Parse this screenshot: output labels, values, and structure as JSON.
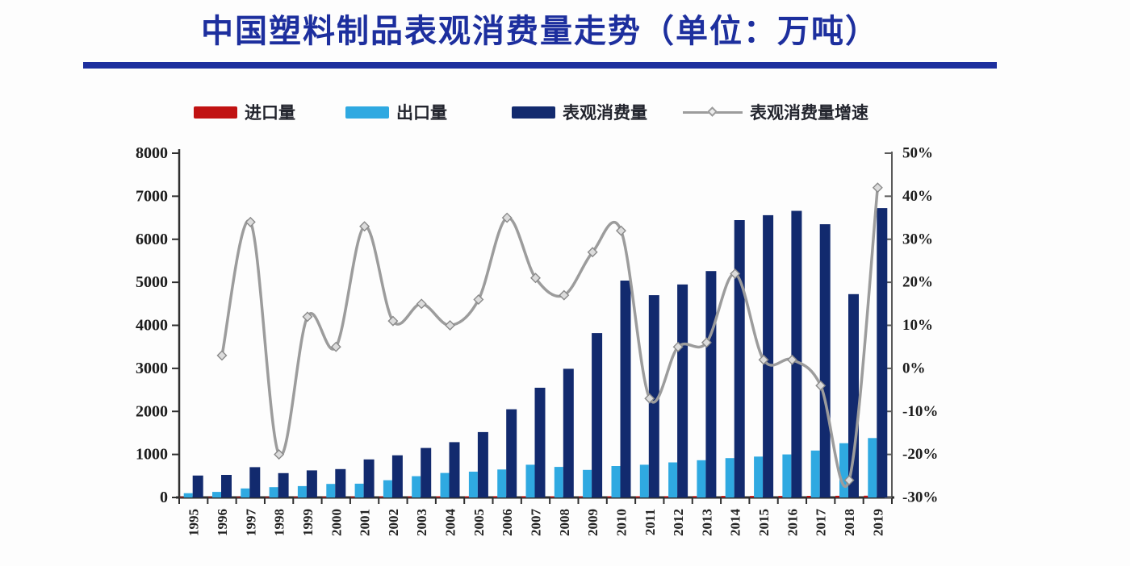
{
  "title": {
    "text": "中国塑料制品表观消费量走势（单位：万吨）",
    "color": "#1d2f9e"
  },
  "divider": {
    "color": "#1d2f9e"
  },
  "legend": {
    "items": [
      {
        "label": "进口量",
        "swatch": "bar",
        "color": "#c11212"
      },
      {
        "label": "出口量",
        "swatch": "bar",
        "color": "#2fa9e1"
      },
      {
        "label": "表观消费量",
        "swatch": "bar",
        "color": "#122a6e"
      },
      {
        "label": "表观消费量增速",
        "swatch": "line",
        "color": "#9c9c9c"
      }
    ]
  },
  "chart_data": {
    "type": "combo",
    "title": "中国塑料制品表观消费量走势",
    "unit_left": "万吨",
    "unit_right": "%",
    "grid": false,
    "legend_position": "top",
    "categories": [
      1995,
      1996,
      1997,
      1998,
      1999,
      2000,
      2001,
      2002,
      2003,
      2004,
      2005,
      2006,
      2007,
      2008,
      2009,
      2010,
      2011,
      2012,
      2013,
      2014,
      2015,
      2016,
      2017,
      2018,
      2019
    ],
    "series": [
      {
        "name": "进口量",
        "type": "bar",
        "axis": "left",
        "color": "#c11212",
        "values": [
          15,
          15,
          18,
          18,
          20,
          20,
          22,
          25,
          25,
          28,
          28,
          30,
          30,
          28,
          25,
          28,
          28,
          30,
          32,
          35,
          35,
          36,
          38,
          40,
          42
        ]
      },
      {
        "name": "出口量",
        "type": "bar",
        "axis": "left",
        "color": "#2fa9e1",
        "values": [
          100,
          130,
          210,
          240,
          265,
          315,
          320,
          400,
          495,
          570,
          600,
          650,
          760,
          710,
          640,
          730,
          760,
          815,
          865,
          915,
          950,
          1000,
          1090,
          1260,
          1380
        ]
      },
      {
        "name": "表观消费量",
        "type": "bar",
        "axis": "left",
        "color": "#122a6e",
        "values": [
          510,
          525,
          705,
          565,
          630,
          660,
          885,
          980,
          1150,
          1285,
          1520,
          2050,
          2550,
          2990,
          3820,
          5040,
          4700,
          4950,
          5260,
          6445,
          6560,
          6660,
          6350,
          4725,
          6725
        ]
      },
      {
        "name": "表观消费量增速",
        "type": "line",
        "axis": "right",
        "color": "#9c9c9c",
        "values": [
          null,
          3,
          34,
          -20,
          12,
          5,
          33,
          11,
          15,
          10,
          16,
          35,
          21,
          17,
          27,
          32,
          -7,
          5,
          6,
          22,
          2,
          2,
          -4,
          -26,
          42
        ]
      }
    ],
    "left_axis": {
      "min": 0,
      "max": 8000,
      "tick_step": 1000,
      "labels": [
        "0",
        "1000",
        "2000",
        "3000",
        "4000",
        "5000",
        "6000",
        "7000",
        "8000"
      ]
    },
    "right_axis": {
      "min": -30,
      "max": 50,
      "tick_step": 10,
      "labels": [
        "-30%",
        "-20%",
        "-10%",
        "0%",
        "10%",
        "20%",
        "30%",
        "40%",
        "50%"
      ]
    }
  }
}
